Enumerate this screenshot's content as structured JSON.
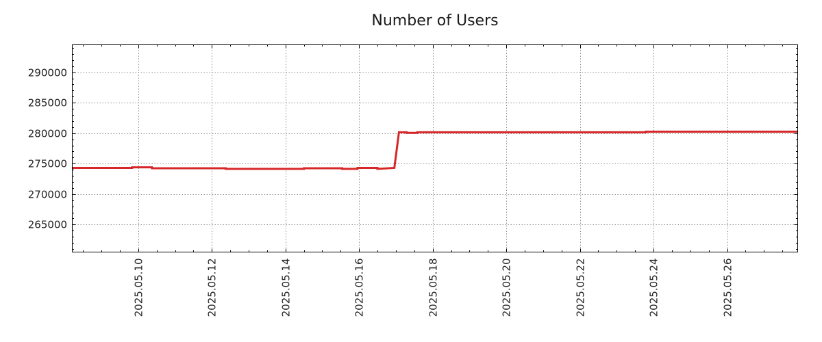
{
  "chart_data": {
    "type": "line",
    "title": "Number of Users",
    "xlabel": "",
    "ylabel": "",
    "x_range": [
      "2025-05-08T05:00",
      "2025-05-27T22:00"
    ],
    "ylim": [
      260500,
      294500
    ],
    "y_ticks": [
      265000,
      270000,
      275000,
      280000,
      285000,
      290000
    ],
    "x_ticks": [
      "2025.05.10",
      "2025.05.12",
      "2025.05.14",
      "2025.05.16",
      "2025.05.18",
      "2025.05.20",
      "2025.05.22",
      "2025.05.24",
      "2025.05.26"
    ],
    "grid": true,
    "legend": "none",
    "series": [
      {
        "color": "#d62728",
        "x": [
          "2025-05-08T05:00",
          "2025-05-09T20:00",
          "2025-05-09T20:00",
          "2025-05-10T09:00",
          "2025-05-10T09:00",
          "2025-05-12T09:00",
          "2025-05-12T09:00",
          "2025-05-14T12:00",
          "2025-05-14T12:00",
          "2025-05-15T13:00",
          "2025-05-15T13:00",
          "2025-05-15T23:00",
          "2025-05-15T23:00",
          "2025-05-16T12:00",
          "2025-05-16T12:00",
          "2025-05-16T23:00",
          "2025-05-17T02:00",
          "2025-05-17T07:00",
          "2025-05-17T07:00",
          "2025-05-17T14:00",
          "2025-05-17T14:00",
          "2025-05-23T19:00",
          "2025-05-23T19:00",
          "2025-05-27T22:00"
        ],
        "y": [
          274300,
          274300,
          274400,
          274400,
          274250,
          274250,
          274150,
          274150,
          274250,
          274250,
          274150,
          274150,
          274300,
          274300,
          274150,
          274300,
          280150,
          280150,
          280050,
          280050,
          280150,
          280150,
          280250,
          280250
        ]
      }
    ]
  }
}
